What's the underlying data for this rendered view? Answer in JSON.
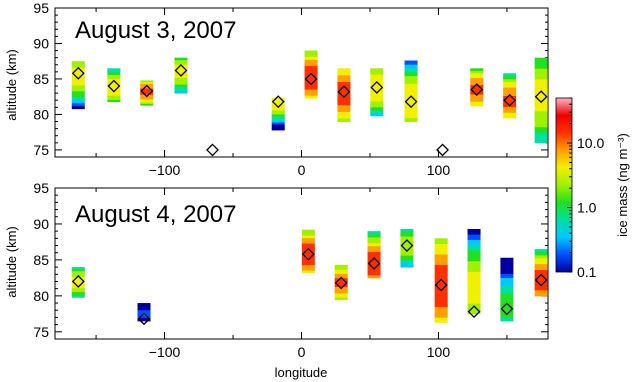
{
  "chart_data": [
    {
      "type": "scatter",
      "title": "August 3, 2007",
      "xlabel": "",
      "ylabel": "altitude (km)",
      "xlim": [
        -180,
        180
      ],
      "ylim": [
        74,
        95
      ],
      "xticks": [
        -100,
        0,
        100
      ],
      "yticks": [
        75,
        80,
        85,
        90,
        95
      ],
      "series": [
        {
          "values": [
            {
              "x": -163,
              "y": 85.8,
              "ymin": 80.8,
              "ymax": 87.5,
              "peak": 85.5,
              "max_mass": 6
            },
            {
              "x": -137,
              "y": 84.0,
              "ymin": 81.8,
              "ymax": 86.5,
              "peak": 83.8,
              "max_mass": 8
            },
            {
              "x": -113,
              "y": 83.3,
              "ymin": 81.3,
              "ymax": 84.8,
              "peak": 83.2,
              "max_mass": 20
            },
            {
              "x": -88,
              "y": 86.2,
              "ymin": 83.0,
              "ymax": 88.0,
              "peak": 86.0,
              "max_mass": 6
            },
            {
              "x": -65,
              "y": 75.0
            },
            {
              "x": -17,
              "y": 81.8,
              "ymin": 77.8,
              "ymax": 82.3,
              "peak": 81.8,
              "max_mass": 8
            },
            {
              "x": 7,
              "y": 85.0,
              "ymin": 82.3,
              "ymax": 89.0,
              "peak": 85.2,
              "max_mass": 30
            },
            {
              "x": 31,
              "y": 83.2,
              "ymin": 79.0,
              "ymax": 86.5,
              "peak": 83.0,
              "max_mass": 30
            },
            {
              "x": 55,
              "y": 83.8,
              "ymin": 79.8,
              "ymax": 86.5,
              "peak": 83.8,
              "max_mass": 8
            },
            {
              "x": 80,
              "y": 81.8,
              "ymin": 79.0,
              "ymax": 87.6,
              "peak": 82.0,
              "max_mass": 8
            },
            {
              "x": 103,
              "y": 75.0
            },
            {
              "x": 128,
              "y": 83.5,
              "ymin": 81.2,
              "ymax": 86.5,
              "peak": 83.5,
              "max_mass": 20
            },
            {
              "x": 152,
              "y": 82.0,
              "ymin": 79.5,
              "ymax": 85.8,
              "peak": 82.0,
              "max_mass": 20
            },
            {
              "x": 175,
              "y": 82.5,
              "ymin": 76.0,
              "ymax": 88.0,
              "peak": 82.5,
              "max_mass": 6
            }
          ]
        }
      ]
    },
    {
      "type": "scatter",
      "title": "August 4, 2007",
      "xlabel": "longitude",
      "ylabel": "altitude (km)",
      "xlim": [
        -180,
        180
      ],
      "ylim": [
        74,
        95
      ],
      "xticks": [
        -100,
        0,
        100
      ],
      "yticks": [
        75,
        80,
        85,
        90,
        95
      ],
      "series": [
        {
          "values": [
            {
              "x": -163,
              "y": 82.0,
              "ymin": 79.8,
              "ymax": 84.0,
              "peak": 82.0,
              "max_mass": 6
            },
            {
              "x": -115,
              "y": 76.8,
              "ymin": 76.5,
              "ymax": 79.0,
              "peak": 77.5,
              "max_mass": 0.2
            },
            {
              "x": 5,
              "y": 85.8,
              "ymin": 83.2,
              "ymax": 89.2,
              "peak": 85.8,
              "max_mass": 30
            },
            {
              "x": 29,
              "y": 81.8,
              "ymin": 79.5,
              "ymax": 84.3,
              "peak": 81.8,
              "max_mass": 20
            },
            {
              "x": 53,
              "y": 84.5,
              "ymin": 82.5,
              "ymax": 89.0,
              "peak": 84.5,
              "max_mass": 30
            },
            {
              "x": 77,
              "y": 87.0,
              "ymin": 84.0,
              "ymax": 89.3,
              "peak": 87.0,
              "max_mass": 4
            },
            {
              "x": 102,
              "y": 81.5,
              "ymin": 76.3,
              "ymax": 88.0,
              "peak": 81.5,
              "max_mass": 30
            },
            {
              "x": 126,
              "y": 77.8,
              "ymin": 77.5,
              "ymax": 89.3,
              "peak": 81.0,
              "max_mass": 6
            },
            {
              "x": 150,
              "y": 78.2,
              "ymin": 76.5,
              "ymax": 85.3,
              "peak": 78.5,
              "max_mass": 1.5
            },
            {
              "x": 175,
              "y": 82.2,
              "ymin": 80.0,
              "ymax": 86.5,
              "peak": 82.2,
              "max_mass": 30
            }
          ]
        }
      ]
    }
  ],
  "colorbar": {
    "label": "ice mass (ng m⁻³)",
    "scale": "log",
    "range": [
      0.1,
      50
    ],
    "ticks": [
      {
        "value": 0.1,
        "label": "0.1"
      },
      {
        "value": 1,
        "label": "1.0"
      },
      {
        "value": 10,
        "label": "10.0"
      }
    ],
    "colors": [
      "#0000a0",
      "#0050ff",
      "#00c8ff",
      "#00e0a0",
      "#20e020",
      "#a0f000",
      "#f0f000",
      "#ffa000",
      "#ff3000",
      "#ee0000",
      "#ffb6c1"
    ]
  }
}
